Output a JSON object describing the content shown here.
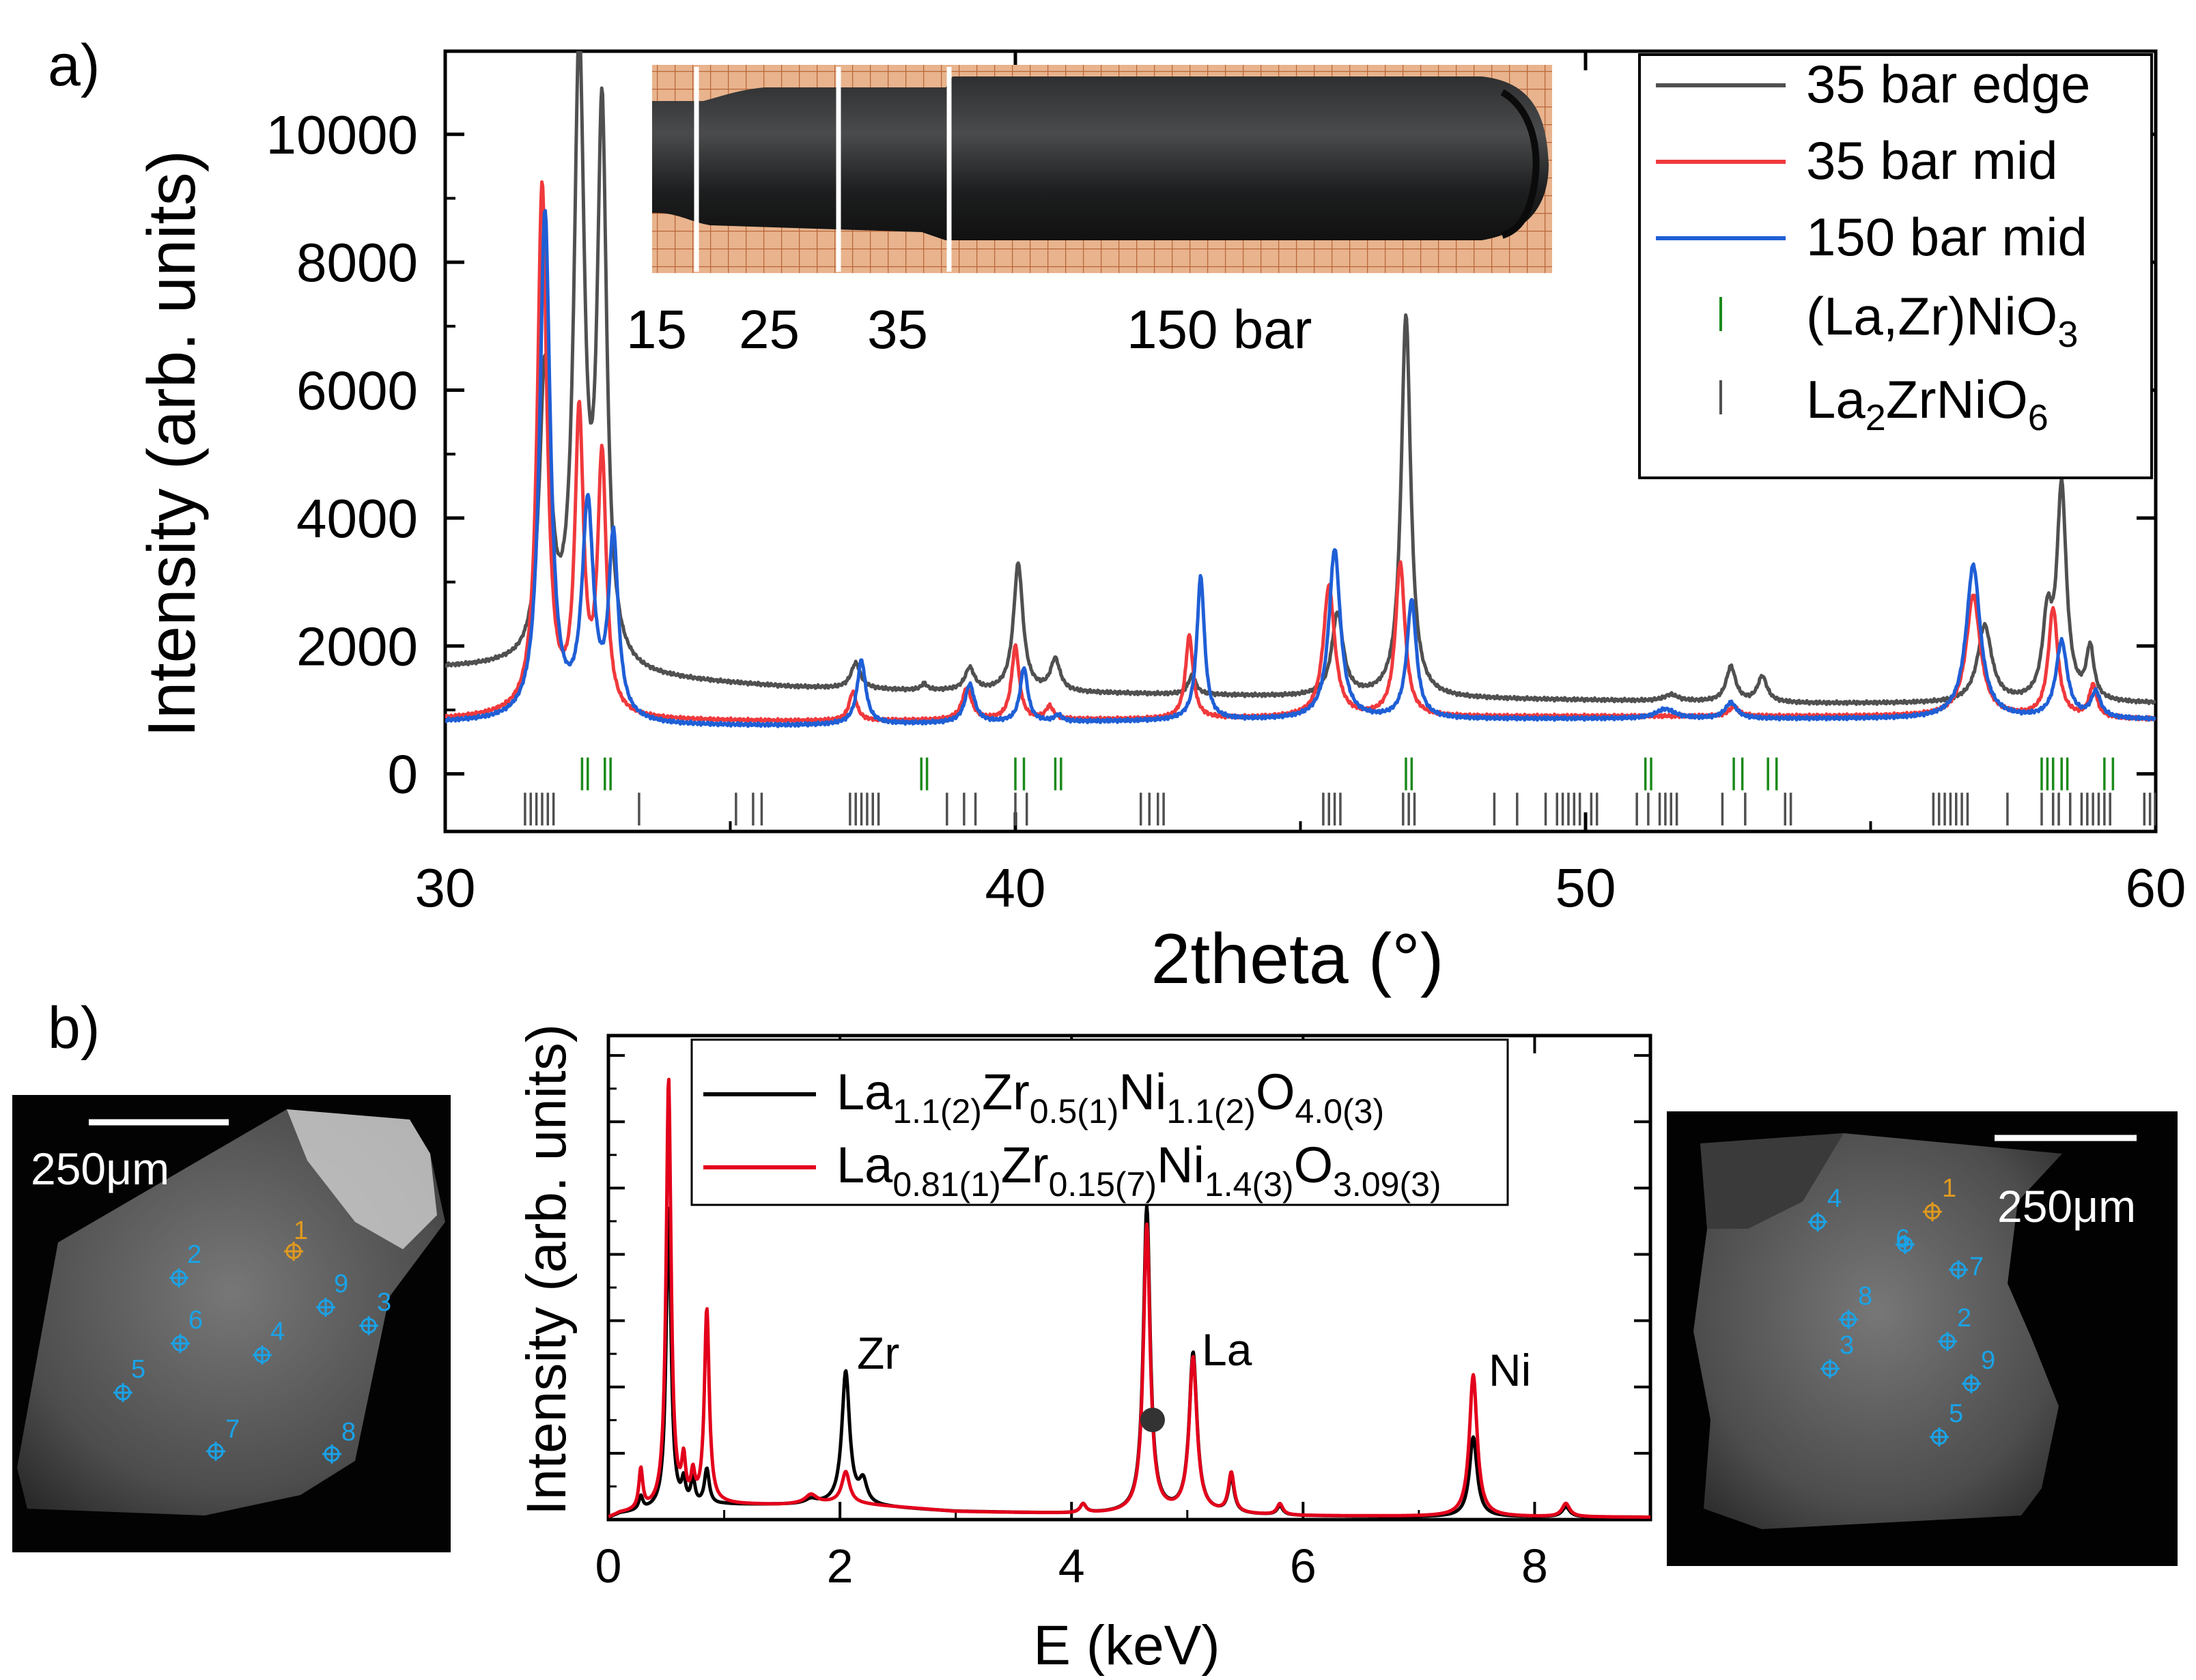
{
  "panel_a": {
    "label": "a)",
    "inset_positions": [
      "15",
      "25",
      "35",
      "150 bar"
    ]
  },
  "panel_b": {
    "label": "b)",
    "left_sem": {
      "scale_label": "250μm",
      "points": [
        "1",
        "2",
        "3",
        "4",
        "5",
        "6",
        "7",
        "8",
        "9"
      ]
    },
    "right_sem": {
      "scale_label": "250μm",
      "points": [
        "1",
        "2",
        "3",
        "4",
        "5",
        "6",
        "7",
        "8",
        "9"
      ]
    }
  },
  "chart_data": [
    {
      "type": "line",
      "title": "",
      "xlabel": "2theta (°)",
      "ylabel": "Intensity (arb. units)",
      "xlim": [
        30,
        60
      ],
      "ylim": [
        -900,
        11300
      ],
      "x_ticks": [
        "30",
        "40",
        "50",
        "60"
      ],
      "y_ticks": [
        "0",
        "2000",
        "4000",
        "6000",
        "8000",
        "10000"
      ],
      "legend": {
        "position": "top-right",
        "entries": [
          {
            "label": "35 bar edge",
            "kind": "line",
            "color": "#505050"
          },
          {
            "label": "35 bar mid",
            "kind": "line",
            "color": "#f0393c"
          },
          {
            "label": "150 bar mid",
            "kind": "line",
            "color": "#1f5fd6"
          },
          {
            "label": "(La,Zr)NiO",
            "sub": "3",
            "kind": "tick",
            "color": "#1a8a1a"
          },
          {
            "label": "La",
            "sub": "2",
            "label2": "ZrNiO",
            "sub2": "6",
            "kind": "tick",
            "color": "#505050"
          }
        ]
      },
      "series": [
        {
          "name": "35 bar edge",
          "color": "#505050",
          "baseline": [
            [
              30,
              1650
            ],
            [
              31,
              1650
            ],
            [
              32.5,
              1500
            ],
            [
              34,
              1450
            ],
            [
              36,
              1350
            ],
            [
              38,
              1300
            ],
            [
              42,
              1250
            ],
            [
              45,
              1200
            ],
            [
              50,
              1150
            ],
            [
              54,
              1100
            ],
            [
              56,
              1100
            ],
            [
              60,
              1100
            ]
          ],
          "peaks": [
            [
              31.75,
              4600,
              0.12
            ],
            [
              32.35,
              9500,
              0.11
            ],
            [
              32.75,
              8500,
              0.1
            ],
            [
              37.2,
              400,
              0.1
            ],
            [
              38.4,
              100,
              0.06
            ],
            [
              39.2,
              350,
              0.1
            ],
            [
              40.05,
              2000,
              0.1
            ],
            [
              40.7,
              500,
              0.1
            ],
            [
              43.1,
              300,
              0.08
            ],
            [
              45.65,
              1300,
              0.12
            ],
            [
              46.85,
              6000,
              0.1
            ],
            [
              51.5,
              100,
              0.15
            ],
            [
              52.55,
              550,
              0.1
            ],
            [
              53.1,
              400,
              0.1
            ],
            [
              57.0,
              1200,
              0.15
            ],
            [
              58.1,
              1200,
              0.1
            ],
            [
              58.35,
              3300,
              0.1
            ],
            [
              58.85,
              800,
              0.08
            ]
          ]
        },
        {
          "name": "35 bar mid",
          "color": "#f0393c",
          "baseline": [
            [
              30,
              850
            ],
            [
              31,
              880
            ],
            [
              32.5,
              850
            ],
            [
              34,
              830
            ],
            [
              36,
              820
            ],
            [
              38,
              830
            ],
            [
              42,
              850
            ],
            [
              45,
              880
            ],
            [
              50,
              900
            ],
            [
              54,
              900
            ],
            [
              56,
              900
            ],
            [
              60,
              850
            ]
          ],
          "peaks": [
            [
              31.7,
              8300,
              0.1
            ],
            [
              32.35,
              4600,
              0.09
            ],
            [
              32.75,
              4000,
              0.09
            ],
            [
              37.15,
              450,
              0.08
            ],
            [
              39.15,
              500,
              0.1
            ],
            [
              40.0,
              1150,
              0.08
            ],
            [
              40.6,
              200,
              0.08
            ],
            [
              43.05,
              1300,
              0.08
            ],
            [
              45.5,
              2050,
              0.12
            ],
            [
              46.75,
              2400,
              0.1
            ],
            [
              52.6,
              150,
              0.1
            ],
            [
              56.8,
              1900,
              0.15
            ],
            [
              58.2,
              1700,
              0.1
            ],
            [
              58.9,
              500,
              0.08
            ]
          ]
        },
        {
          "name": "150 bar mid",
          "color": "#1f5fd6",
          "baseline": [
            [
              30,
              800
            ],
            [
              31,
              800
            ],
            [
              32.5,
              770
            ],
            [
              34,
              750
            ],
            [
              36,
              750
            ],
            [
              38,
              780
            ],
            [
              42,
              820
            ],
            [
              45,
              850
            ],
            [
              50,
              860
            ],
            [
              54,
              860
            ],
            [
              56,
              860
            ],
            [
              60,
              850
            ]
          ],
          "peaks": [
            [
              31.75,
              7950,
              0.11
            ],
            [
              32.5,
              3300,
              0.12
            ],
            [
              32.95,
              2800,
              0.1
            ],
            [
              37.3,
              1000,
              0.09
            ],
            [
              39.2,
              600,
              0.1
            ],
            [
              40.15,
              850,
              0.08
            ],
            [
              40.75,
              100,
              0.08
            ],
            [
              43.25,
              2250,
              0.08
            ],
            [
              45.6,
              2650,
              0.12
            ],
            [
              46.95,
              1850,
              0.1
            ],
            [
              51.4,
              150,
              0.2
            ],
            [
              52.55,
              250,
              0.12
            ],
            [
              56.8,
              2400,
              0.15
            ],
            [
              58.35,
              1200,
              0.12
            ],
            [
              58.95,
              400,
              0.1
            ]
          ]
        }
      ],
      "reflections": [
        {
          "name": "(La,Zr)NiO3",
          "color": "#1a8a1a",
          "y": 0,
          "positions": [
            32.4,
            32.5,
            32.8,
            32.9,
            38.35,
            38.45,
            40.0,
            40.15,
            40.7,
            40.8,
            46.85,
            46.95,
            51.05,
            51.15,
            52.6,
            52.75,
            53.2,
            53.35,
            58.0,
            58.1,
            58.2,
            58.35,
            58.45,
            59.1,
            59.25
          ]
        },
        {
          "name": "La2ZrNiO6",
          "color": "#505050",
          "y": -550,
          "positions": [
            31.4,
            31.5,
            31.6,
            31.7,
            31.8,
            31.9,
            33.4,
            35.1,
            35.4,
            35.55,
            37.1,
            37.2,
            37.3,
            37.4,
            37.5,
            37.6,
            38.8,
            39.1,
            39.3,
            40.0,
            40.2,
            42.2,
            42.35,
            42.5,
            42.6,
            45.4,
            45.5,
            45.6,
            45.7,
            46.8,
            46.9,
            47.0,
            48.4,
            48.8,
            49.3,
            49.5,
            49.6,
            49.7,
            49.8,
            49.9,
            50.1,
            50.2,
            50.9,
            51.1,
            51.3,
            51.4,
            51.5,
            51.6,
            52.4,
            52.8,
            53.5,
            53.6,
            56.1,
            56.2,
            56.3,
            56.4,
            56.5,
            56.6,
            56.7,
            57.4,
            58.0,
            58.2,
            58.3,
            58.5,
            58.7,
            58.8,
            58.9,
            59.0,
            59.1,
            59.2,
            59.8,
            59.9,
            60.0
          ]
        }
      ]
    },
    {
      "type": "line",
      "title": "",
      "xlabel": "E (keV)",
      "ylabel": "Intensity (arb. units)",
      "xlim": [
        0,
        9
      ],
      "ylim": [
        0,
        1
      ],
      "x_ticks": [
        "0",
        "2",
        "4",
        "6",
        "8"
      ],
      "y_ticks": [],
      "annotations": [
        "Zr",
        "La",
        "Ni"
      ],
      "legend": {
        "position": "top-left",
        "entries": [
          {
            "color": "#000000",
            "parts": [
              [
                "La",
                ""
              ],
              [
                "1.1(2)",
                "sub"
              ],
              [
                "Zr",
                ""
              ],
              [
                "0.5(1)",
                "sub"
              ],
              [
                "Ni",
                ""
              ],
              [
                "1.1(2)",
                "sub"
              ],
              [
                "O",
                ""
              ],
              [
                "4.0(3)",
                "sub"
              ]
            ]
          },
          {
            "color": "#e3001b",
            "parts": [
              [
                "La",
                ""
              ],
              [
                "0.81(1)",
                "sub"
              ],
              [
                "Zr",
                ""
              ],
              [
                "0.15(7)",
                "sub"
              ],
              [
                "Ni",
                ""
              ],
              [
                "1.4(3)",
                "sub"
              ],
              [
                "O",
                ""
              ],
              [
                "3.09(3)",
                "sub"
              ]
            ]
          }
        ]
      },
      "series": [
        {
          "name": "La1.1(2)Zr0.5(1)Ni1.1(2)O4.0(3)",
          "color": "#000000",
          "baseline": [
            [
              0,
              0.0
            ],
            [
              0.1,
              0.01
            ],
            [
              0.5,
              0.02
            ],
            [
              1,
              0.03
            ],
            [
              1.5,
              0.03
            ],
            [
              2,
              0.03
            ],
            [
              3,
              0.015
            ],
            [
              4,
              0.01
            ],
            [
              5,
              0.01
            ],
            [
              6,
              0.005
            ],
            [
              7,
              0.003
            ],
            [
              8,
              0.003
            ],
            [
              9,
              0.002
            ]
          ],
          "peaks": [
            [
              0.28,
              0.03,
              0.02
            ],
            [
              0.52,
              0.68,
              0.025
            ],
            [
              0.65,
              0.05,
              0.02
            ],
            [
              0.73,
              0.06,
              0.02
            ],
            [
              0.85,
              0.08,
              0.025
            ],
            [
              1.75,
              0.01,
              0.06
            ],
            [
              2.05,
              0.3,
              0.04
            ],
            [
              2.2,
              0.05,
              0.04
            ],
            [
              4.1,
              0.02,
              0.03
            ],
            [
              4.65,
              0.69,
              0.035
            ],
            [
              5.05,
              0.36,
              0.04
            ],
            [
              5.38,
              0.08,
              0.03
            ],
            [
              5.8,
              0.02,
              0.03
            ],
            [
              7.47,
              0.18,
              0.04
            ],
            [
              8.27,
              0.022,
              0.04
            ]
          ]
        },
        {
          "name": "La0.81(1)Zr0.15(7)Ni1.4(3)O3.09(3)",
          "color": "#e3001b",
          "baseline": [
            [
              0,
              0.0
            ],
            [
              0.1,
              0.01
            ],
            [
              0.5,
              0.02
            ],
            [
              1,
              0.03
            ],
            [
              1.5,
              0.03
            ],
            [
              2,
              0.035
            ],
            [
              3,
              0.015
            ],
            [
              4,
              0.01
            ],
            [
              5,
              0.01
            ],
            [
              6,
              0.005
            ],
            [
              7,
              0.004
            ],
            [
              8,
              0.003
            ],
            [
              9,
              0.002
            ]
          ],
          "peaks": [
            [
              0.28,
              0.09,
              0.02
            ],
            [
              0.52,
              0.97,
              0.025
            ],
            [
              0.65,
              0.09,
              0.02
            ],
            [
              0.73,
              0.06,
              0.02
            ],
            [
              0.85,
              0.44,
              0.025
            ],
            [
              1.75,
              0.02,
              0.06
            ],
            [
              2.05,
              0.07,
              0.04
            ],
            [
              4.1,
              0.02,
              0.03
            ],
            [
              4.65,
              0.65,
              0.035
            ],
            [
              5.05,
              0.35,
              0.04
            ],
            [
              5.38,
              0.09,
              0.03
            ],
            [
              5.8,
              0.025,
              0.03
            ],
            [
              7.47,
              0.32,
              0.04
            ],
            [
              8.27,
              0.03,
              0.04
            ]
          ]
        }
      ]
    }
  ]
}
